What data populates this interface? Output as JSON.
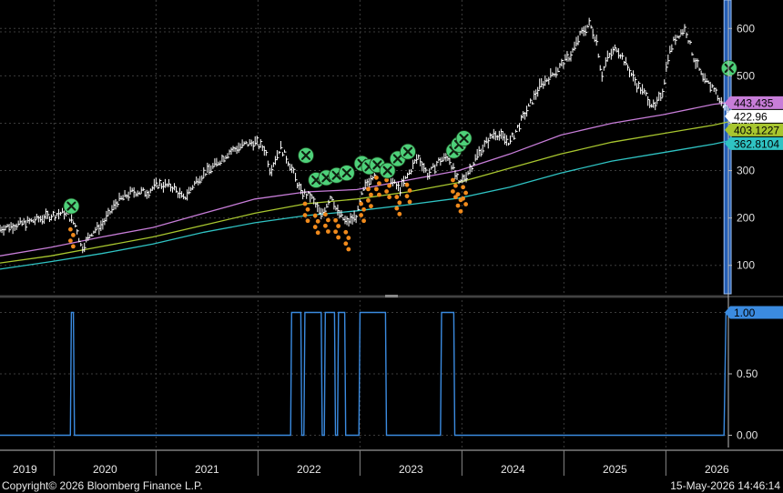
{
  "chart_data": [
    {
      "type": "line",
      "panel": "upper",
      "description_series": [
        "price",
        "ma_pink",
        "ma_green",
        "ma_cyan"
      ],
      "x_axis": {
        "years": [
          "2019",
          "2020",
          "2021",
          "2022",
          "2023",
          "2024",
          "2025",
          "2026"
        ]
      },
      "y_axis": {
        "ticks": [
          "100",
          "200",
          "300",
          "400",
          "500",
          "600"
        ],
        "ylim": [
          40,
          660
        ],
        "side": "right"
      },
      "grid": true,
      "series": [
        {
          "key": "price",
          "color": "#ffffff",
          "style": "ohlc-bars",
          "points": [
            [
              2019.0,
              178
            ],
            [
              2019.25,
              190
            ],
            [
              2019.5,
              205
            ],
            [
              2019.65,
              212
            ],
            [
              2019.75,
              180
            ],
            [
              2019.8,
              135
            ],
            [
              2019.9,
              170
            ],
            [
              2020.0,
              185
            ],
            [
              2020.15,
              235
            ],
            [
              2020.3,
              255
            ],
            [
              2020.45,
              255
            ],
            [
              2020.55,
              272
            ],
            [
              2020.7,
              265
            ],
            [
              2020.8,
              240
            ],
            [
              2020.95,
              285
            ],
            [
              2021.1,
              310
            ],
            [
              2021.25,
              340
            ],
            [
              2021.4,
              355
            ],
            [
              2021.5,
              360
            ],
            [
              2021.6,
              345
            ],
            [
              2021.65,
              300
            ],
            [
              2021.75,
              350
            ],
            [
              2021.85,
              310
            ],
            [
              2021.95,
              255
            ],
            [
              2022.05,
              245
            ],
            [
              2022.15,
              205
            ],
            [
              2022.25,
              250
            ],
            [
              2022.3,
              215
            ],
            [
              2022.4,
              190
            ],
            [
              2022.5,
              205
            ],
            [
              2022.55,
              250
            ],
            [
              2022.6,
              275
            ],
            [
              2022.7,
              305
            ],
            [
              2022.8,
              300
            ],
            [
              2022.85,
              275
            ],
            [
              2022.92,
              260
            ],
            [
              2023.0,
              290
            ],
            [
              2023.1,
              330
            ],
            [
              2023.2,
              290
            ],
            [
              2023.3,
              320
            ],
            [
              2023.4,
              330
            ],
            [
              2023.5,
              270
            ],
            [
              2023.6,
              300
            ],
            [
              2023.7,
              340
            ],
            [
              2023.85,
              380
            ],
            [
              2024.0,
              360
            ],
            [
              2024.15,
              420
            ],
            [
              2024.3,
              480
            ],
            [
              2024.45,
              510
            ],
            [
              2024.6,
              545
            ],
            [
              2024.7,
              590
            ],
            [
              2024.78,
              610
            ],
            [
              2024.85,
              575
            ],
            [
              2024.9,
              500
            ],
            [
              2024.95,
              535
            ],
            [
              2025.05,
              560
            ],
            [
              2025.15,
              520
            ],
            [
              2025.25,
              480
            ],
            [
              2025.35,
              455
            ],
            [
              2025.42,
              430
            ],
            [
              2025.5,
              470
            ],
            [
              2025.55,
              540
            ],
            [
              2025.62,
              580
            ],
            [
              2025.72,
              600
            ],
            [
              2025.8,
              540
            ],
            [
              2025.9,
              490
            ],
            [
              2026.0,
              475
            ],
            [
              2026.05,
              450
            ],
            [
              2026.12,
              430
            ],
            [
              2026.15,
              422.96
            ]
          ]
        },
        {
          "key": "ma_pink",
          "color": "#c77dd8",
          "points": [
            [
              2019.0,
              120
            ],
            [
              2019.5,
              138
            ],
            [
              2020.0,
              160
            ],
            [
              2020.5,
              180
            ],
            [
              2021.0,
              210
            ],
            [
              2021.5,
              240
            ],
            [
              2022.0,
              255
            ],
            [
              2022.5,
              260
            ],
            [
              2023.0,
              280
            ],
            [
              2023.5,
              300
            ],
            [
              2024.0,
              335
            ],
            [
              2024.5,
              375
            ],
            [
              2025.0,
              400
            ],
            [
              2025.5,
              418
            ],
            [
              2026.0,
              440
            ],
            [
              2026.15,
              443.435
            ]
          ]
        },
        {
          "key": "ma_green",
          "color": "#a8c62f",
          "points": [
            [
              2019.0,
              105
            ],
            [
              2019.5,
              120
            ],
            [
              2020.0,
              140
            ],
            [
              2020.5,
              160
            ],
            [
              2021.0,
              185
            ],
            [
              2021.5,
              210
            ],
            [
              2022.0,
              230
            ],
            [
              2022.5,
              240
            ],
            [
              2023.0,
              255
            ],
            [
              2023.5,
              275
            ],
            [
              2024.0,
              305
            ],
            [
              2024.5,
              335
            ],
            [
              2025.0,
              360
            ],
            [
              2025.5,
              378
            ],
            [
              2026.0,
              396
            ],
            [
              2026.15,
              403.1227
            ]
          ]
        },
        {
          "key": "ma_cyan",
          "color": "#2fc3c3",
          "points": [
            [
              2019.0,
              92
            ],
            [
              2019.5,
              108
            ],
            [
              2020.0,
              125
            ],
            [
              2020.5,
              145
            ],
            [
              2021.0,
              170
            ],
            [
              2021.5,
              190
            ],
            [
              2022.0,
              205
            ],
            [
              2022.5,
              215
            ],
            [
              2023.0,
              228
            ],
            [
              2023.5,
              242
            ],
            [
              2024.0,
              265
            ],
            [
              2024.5,
              295
            ],
            [
              2025.0,
              320
            ],
            [
              2025.5,
              338
            ],
            [
              2026.0,
              356
            ],
            [
              2026.15,
              362.8104
            ]
          ]
        }
      ],
      "last_value_tags": [
        {
          "series": "ma_pink",
          "value": 443.435,
          "label": "443.435",
          "bg": "#c77dd8",
          "fg": "#000000"
        },
        {
          "series": "price",
          "value": 422.96,
          "label": "422.96",
          "bg": "#ffffff",
          "fg": "#000000"
        },
        {
          "series": "ma_green",
          "value": 403.1227,
          "label": "403.1227",
          "bg": "#a8c62f",
          "fg": "#000000"
        },
        {
          "series": "ma_cyan",
          "value": 362.8104,
          "label": "362.8104",
          "bg": "#2fc3c3",
          "fg": "#000000"
        }
      ],
      "signal_markers": [
        {
          "x": 2019.7,
          "y": 225
        },
        {
          "x": 2022.0,
          "y": 332
        },
        {
          "x": 2022.1,
          "y": 280
        },
        {
          "x": 2022.2,
          "y": 285
        },
        {
          "x": 2022.3,
          "y": 290
        },
        {
          "x": 2022.4,
          "y": 295
        },
        {
          "x": 2022.55,
          "y": 315
        },
        {
          "x": 2022.62,
          "y": 308
        },
        {
          "x": 2022.7,
          "y": 312
        },
        {
          "x": 2022.8,
          "y": 300
        },
        {
          "x": 2022.9,
          "y": 325
        },
        {
          "x": 2023.0,
          "y": 340
        },
        {
          "x": 2023.45,
          "y": 342
        },
        {
          "x": 2023.5,
          "y": 355
        },
        {
          "x": 2023.55,
          "y": 368
        },
        {
          "x": 2026.15,
          "y": 516
        }
      ],
      "highlight_band": {
        "x_from": 2026.1,
        "x_to": 2026.17,
        "color": "#2a6fd6"
      }
    },
    {
      "type": "line",
      "panel": "lower",
      "y_axis": {
        "ticks": [
          "0.00",
          "0.50",
          "1.00"
        ],
        "ylim": [
          -0.1,
          1.1
        ],
        "side": "right"
      },
      "grid": true,
      "series": [
        {
          "key": "signal",
          "color": "#3b8be0",
          "points": [
            [
              2019.0,
              0
            ],
            [
              2019.69,
              0
            ],
            [
              2019.7,
              1
            ],
            [
              2019.72,
              1
            ],
            [
              2019.73,
              0
            ],
            [
              2021.85,
              0
            ],
            [
              2021.86,
              1
            ],
            [
              2021.95,
              1
            ],
            [
              2021.96,
              0
            ],
            [
              2021.98,
              0
            ],
            [
              2021.99,
              1
            ],
            [
              2022.15,
              1
            ],
            [
              2022.16,
              0
            ],
            [
              2022.18,
              0
            ],
            [
              2022.19,
              1
            ],
            [
              2022.28,
              1
            ],
            [
              2022.29,
              0
            ],
            [
              2022.31,
              0
            ],
            [
              2022.32,
              1
            ],
            [
              2022.38,
              1
            ],
            [
              2022.39,
              0
            ],
            [
              2022.52,
              0
            ],
            [
              2022.53,
              1
            ],
            [
              2022.78,
              1
            ],
            [
              2022.79,
              0
            ],
            [
              2023.32,
              0
            ],
            [
              2023.33,
              1
            ],
            [
              2023.45,
              1
            ],
            [
              2023.46,
              0
            ],
            [
              2026.1,
              0
            ],
            [
              2026.12,
              1
            ],
            [
              2026.17,
              1
            ]
          ]
        }
      ],
      "last_value_tags": [
        {
          "series": "signal",
          "value": 1.0,
          "label": "1.00",
          "bg": "#3b8be0",
          "fg": "#000000"
        }
      ]
    }
  ],
  "footer": {
    "copyright": "Copyright© 2026 Bloomberg Finance L.P.",
    "timestamp": "15-May-2026 14:46:14"
  },
  "colors": {
    "background": "#000000",
    "grid": "#3c3c3c",
    "separator": "#6b6b6b",
    "marker_fill": "#4ed17a",
    "marker_x": "#0f1f10",
    "orange_marks": "#f08a1c"
  }
}
